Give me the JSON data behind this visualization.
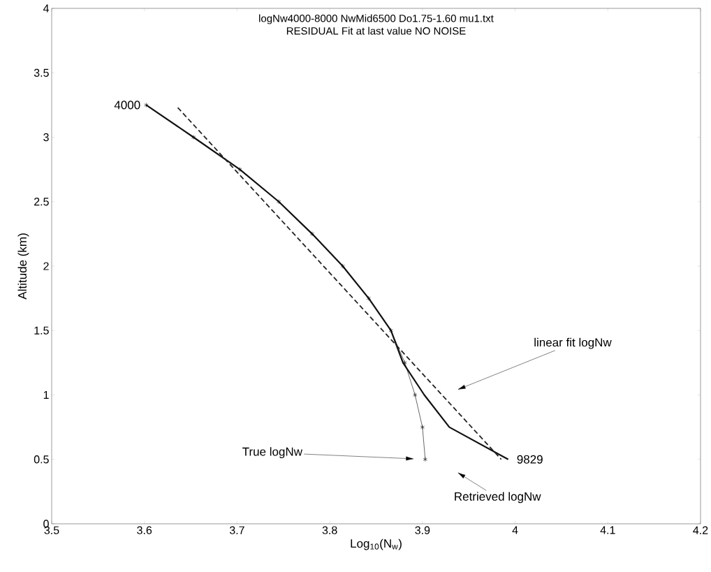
{
  "chart_data": {
    "type": "line",
    "title": "logNw4000-8000 NwMid6500 Do1.75-1.60 mu1.txt",
    "subtitle": "RESIDUAL Fit at last value NO NOISE",
    "xlabel": "Log$_{10}$(N$_{w}$)",
    "ylabel": "Altitude (km)",
    "xlim": [
      3.5,
      4.2
    ],
    "ylim": [
      0,
      4
    ],
    "xticks": [
      3.5,
      3.6,
      3.7,
      3.8,
      3.9,
      4,
      4.1,
      4.2
    ],
    "yticks": [
      0,
      0.5,
      1,
      1.5,
      2,
      2.5,
      3,
      3.5,
      4
    ],
    "grid": false,
    "series": [
      {
        "color": "#000000",
        "marker": "cross",
        "line_style": "solid",
        "x": [
          3.602,
          3.653,
          3.703,
          3.745,
          3.781,
          3.814,
          3.842,
          3.866,
          3.881,
          3.892,
          3.9,
          3.903
        ],
        "values": [
          3.25,
          3.0,
          2.75,
          2.5,
          2.25,
          2.0,
          1.75,
          1.5,
          1.25,
          1.0,
          0.75,
          0.5
        ]
      },
      {
        "color": "#111111",
        "marker": "none",
        "line_style": "solid",
        "x": [
          3.602,
          3.653,
          3.703,
          3.745,
          3.781,
          3.814,
          3.842,
          3.866,
          3.879,
          3.902,
          3.929,
          3.9925
        ],
        "values": [
          3.25,
          3.0,
          2.75,
          2.5,
          2.25,
          2.0,
          1.75,
          1.5,
          1.25,
          1.0,
          0.75,
          0.5
        ]
      },
      {
        "color": "#222222",
        "marker": "none",
        "line_style": "dashed",
        "x": [
          3.636,
          3.985
        ],
        "values": [
          3.23,
          0.5
        ]
      }
    ],
    "annotations": [
      {
        "text": "4000",
        "x": 3.602,
        "y": 3.25
      },
      {
        "text": "9829",
        "x": 3.9925,
        "y": 0.5
      },
      "linear fit logNw",
      "True logNw",
      "Retrieved logNw"
    ]
  }
}
